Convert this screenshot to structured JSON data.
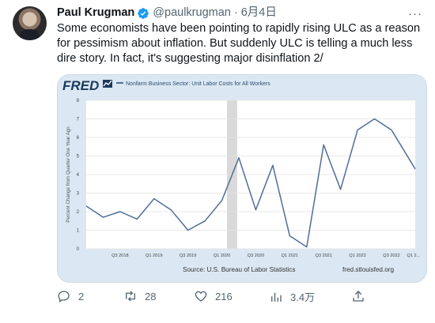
{
  "tweet": {
    "author_name": "Paul Krugman",
    "handle": "@paulkrugman",
    "separator": "·",
    "date": "6月4日",
    "more_label": "···",
    "text": "Some economists have been pointing to rapidly rising ULC as a reason for pessimism about inflation. But suddenly ULC is telling a much less dire story. In fact, it's suggesting major disinflation 2/"
  },
  "colors": {
    "verified": "#1d9bf0",
    "line": "#4e6e99",
    "recession": "#d9d9d9",
    "card_bg": "#dbe8f3"
  },
  "chart_card": {
    "logo": "FRED",
    "source": "Source: U.S. Bureau of Labor Statistics",
    "site": "fred.stlouisfed.org"
  },
  "chart_data": {
    "type": "line",
    "legend": "Nonfarm Business Sector: Unit Labor Costs for All Workers",
    "ylabel": "Percent Change from Quarter One Year Ago",
    "ylim": [
      0,
      8
    ],
    "yticks": [
      0,
      1,
      2,
      3,
      4,
      5,
      6,
      7,
      8
    ],
    "xlim": [
      0,
      19.4
    ],
    "xticks": [
      {
        "x": 2,
        "label": "Q3 2018"
      },
      {
        "x": 4,
        "label": "Q1 2019"
      },
      {
        "x": 6,
        "label": "Q3 2019"
      },
      {
        "x": 8,
        "label": "Q1 2020"
      },
      {
        "x": 10,
        "label": "Q3 2020"
      },
      {
        "x": 12,
        "label": "Q1 2021"
      },
      {
        "x": 14,
        "label": "Q3 2021"
      },
      {
        "x": 16,
        "label": "Q1 2022"
      },
      {
        "x": 18,
        "label": "Q3 2022"
      },
      {
        "x": 19.3,
        "label": "Q1 2..."
      }
    ],
    "recession": [
      8.3,
      8.9
    ],
    "series": [
      {
        "x": [
          0,
          1,
          2,
          3,
          4,
          5,
          6,
          7,
          8,
          9,
          10,
          11,
          12,
          13,
          14,
          15,
          16,
          17,
          18,
          19,
          19.4
        ],
        "values": [
          2.3,
          1.7,
          2.0,
          1.6,
          2.7,
          2.1,
          1.0,
          1.5,
          2.6,
          4.9,
          2.1,
          4.5,
          0.7,
          0.1,
          5.6,
          3.2,
          6.4,
          7.0,
          6.4,
          4.9,
          4.3
        ]
      }
    ]
  },
  "actions": {
    "replies": "2",
    "retweets": "28",
    "likes": "216",
    "views": "3.4万"
  }
}
